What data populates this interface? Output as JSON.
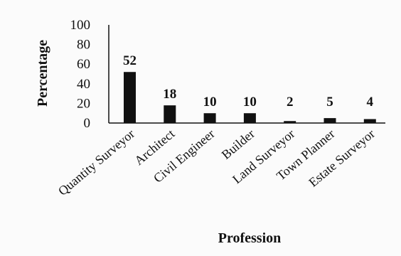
{
  "chart_data": {
    "type": "bar",
    "categories": [
      "Quantity Surveyor",
      "Architect",
      "Civil Engineer",
      "Builder",
      "Land Surveyor",
      "Town Planner",
      "Estate Surveyor"
    ],
    "values": [
      52,
      18,
      10,
      10,
      2,
      5,
      4
    ],
    "data_labels": [
      "52",
      "18",
      "10",
      "10",
      "2",
      "5",
      "4"
    ],
    "xlabel": "Profession",
    "ylabel": "Percentage",
    "ylim": [
      0,
      100
    ],
    "yticks": [
      "0",
      "20",
      "40",
      "60",
      "80",
      "100"
    ],
    "grid": false,
    "legend": "none",
    "colors": {
      "bar": "#111111",
      "axis": "#111111",
      "background": "#fbfbfb"
    }
  }
}
